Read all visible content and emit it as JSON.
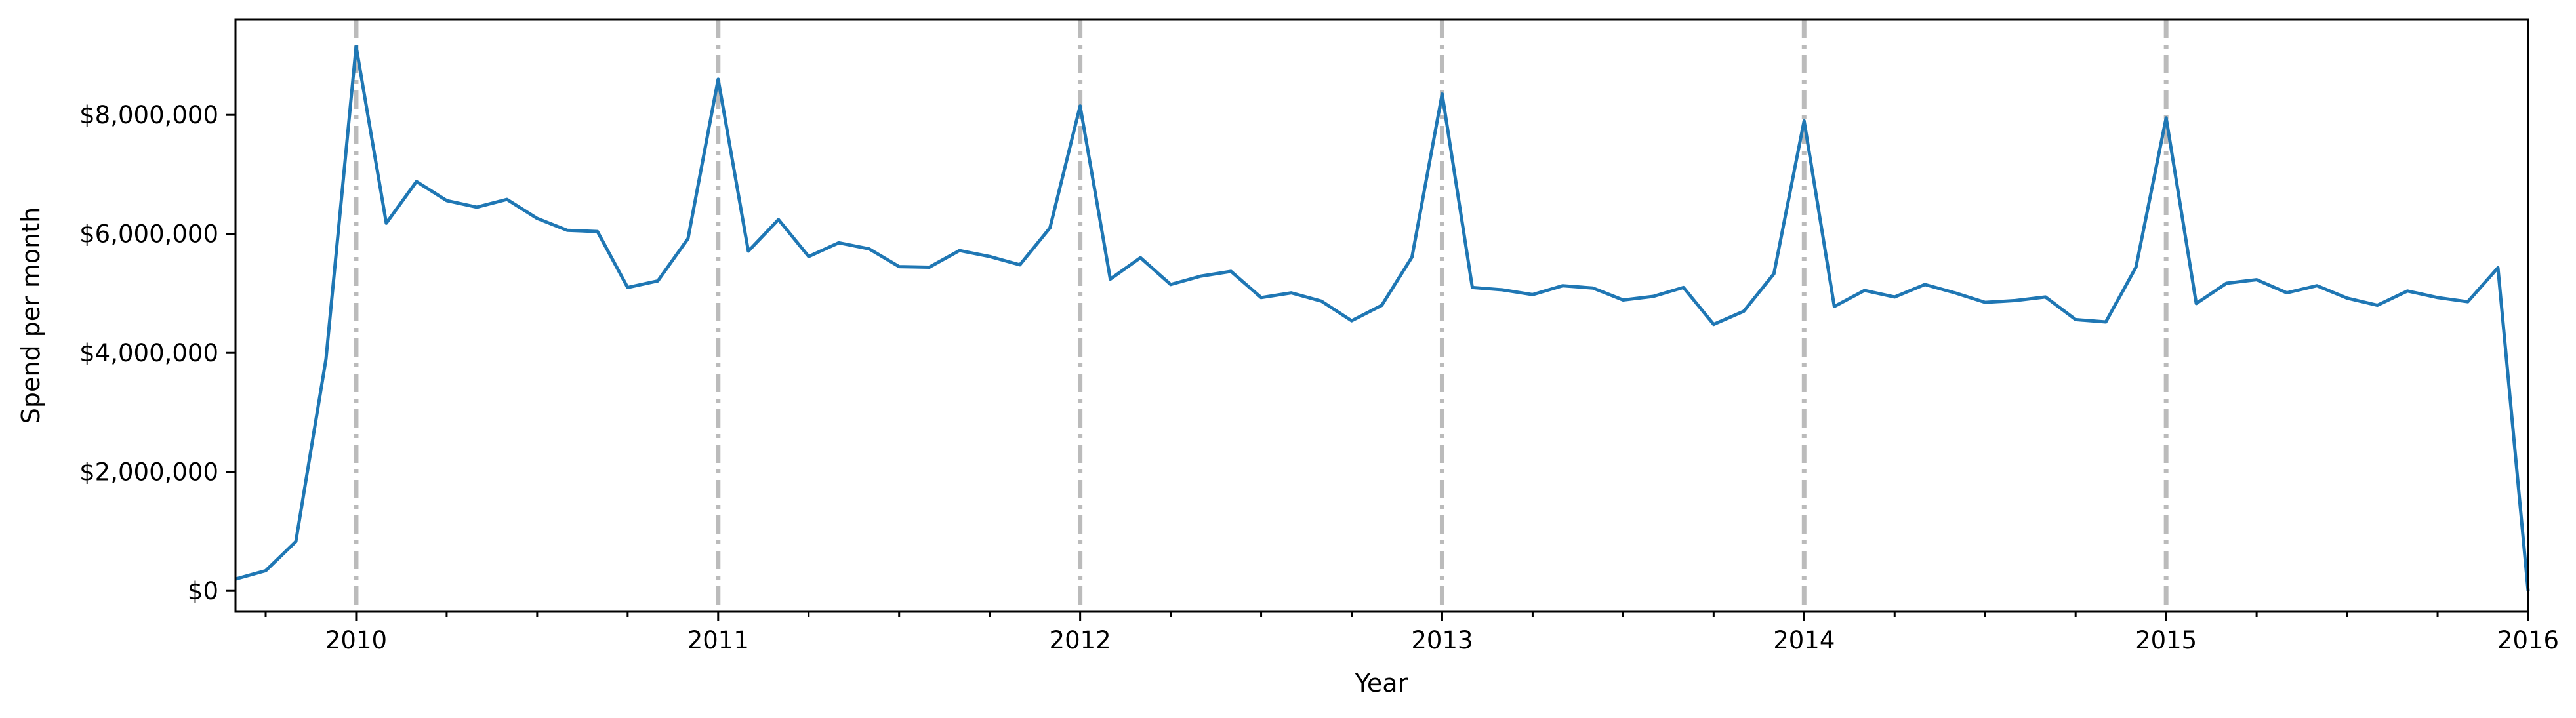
{
  "chart_data": {
    "type": "line",
    "xlabel": "Year",
    "ylabel": "Spend per month",
    "xlim": [
      "2009-09",
      "2016-01"
    ],
    "ylim": [
      -350000,
      9600000
    ],
    "x_ticks": [
      "2010",
      "2011",
      "2012",
      "2013",
      "2014",
      "2015",
      "2016"
    ],
    "y_ticks": [
      {
        "value": 0,
        "label": "$0"
      },
      {
        "value": 2000000,
        "label": "$2,000,000"
      },
      {
        "value": 4000000,
        "label": "$4,000,000"
      },
      {
        "value": 6000000,
        "label": "$6,000,000"
      },
      {
        "value": 8000000,
        "label": "$8,000,000"
      }
    ],
    "year_markers": [
      "2010-01",
      "2011-01",
      "2012-01",
      "2013-01",
      "2014-01",
      "2015-01"
    ],
    "grid": false,
    "line_color": "#1f77b4",
    "marker_color": "#bbbbbb",
    "x": [
      "2009-09",
      "2009-10",
      "2009-11",
      "2009-12",
      "2010-01",
      "2010-02",
      "2010-03",
      "2010-04",
      "2010-05",
      "2010-06",
      "2010-07",
      "2010-08",
      "2010-09",
      "2010-10",
      "2010-11",
      "2010-12",
      "2011-01",
      "2011-02",
      "2011-03",
      "2011-04",
      "2011-05",
      "2011-06",
      "2011-07",
      "2011-08",
      "2011-09",
      "2011-10",
      "2011-11",
      "2011-12",
      "2012-01",
      "2012-02",
      "2012-03",
      "2012-04",
      "2012-05",
      "2012-06",
      "2012-07",
      "2012-08",
      "2012-09",
      "2012-10",
      "2012-11",
      "2012-12",
      "2013-01",
      "2013-02",
      "2013-03",
      "2013-04",
      "2013-05",
      "2013-06",
      "2013-07",
      "2013-08",
      "2013-09",
      "2013-10",
      "2013-11",
      "2013-12",
      "2014-01",
      "2014-02",
      "2014-03",
      "2014-04",
      "2014-05",
      "2014-06",
      "2014-07",
      "2014-08",
      "2014-09",
      "2014-10",
      "2014-11",
      "2014-12",
      "2015-01",
      "2015-02",
      "2015-03",
      "2015-04",
      "2015-05",
      "2015-06",
      "2015-07",
      "2015-08",
      "2015-09",
      "2015-10",
      "2015-11",
      "2015-12",
      "2016-01"
    ],
    "values": [
      200000,
      340000,
      830000,
      3900000,
      9150000,
      6180000,
      6880000,
      6560000,
      6450000,
      6580000,
      6260000,
      6060000,
      6040000,
      5100000,
      5210000,
      5920000,
      8600000,
      5710000,
      6240000,
      5620000,
      5850000,
      5750000,
      5450000,
      5440000,
      5720000,
      5620000,
      5480000,
      6100000,
      8150000,
      5240000,
      5600000,
      5150000,
      5290000,
      5370000,
      4930000,
      5010000,
      4870000,
      4540000,
      4800000,
      5610000,
      8350000,
      5100000,
      5060000,
      4980000,
      5130000,
      5090000,
      4890000,
      4950000,
      5100000,
      4480000,
      4700000,
      5330000,
      7900000,
      4780000,
      5050000,
      4940000,
      5150000,
      5010000,
      4850000,
      4880000,
      4940000,
      4560000,
      4520000,
      5440000,
      7950000,
      4830000,
      5170000,
      5230000,
      5010000,
      5130000,
      4920000,
      4800000,
      5040000,
      4930000,
      4860000,
      5430000,
      0
    ]
  }
}
